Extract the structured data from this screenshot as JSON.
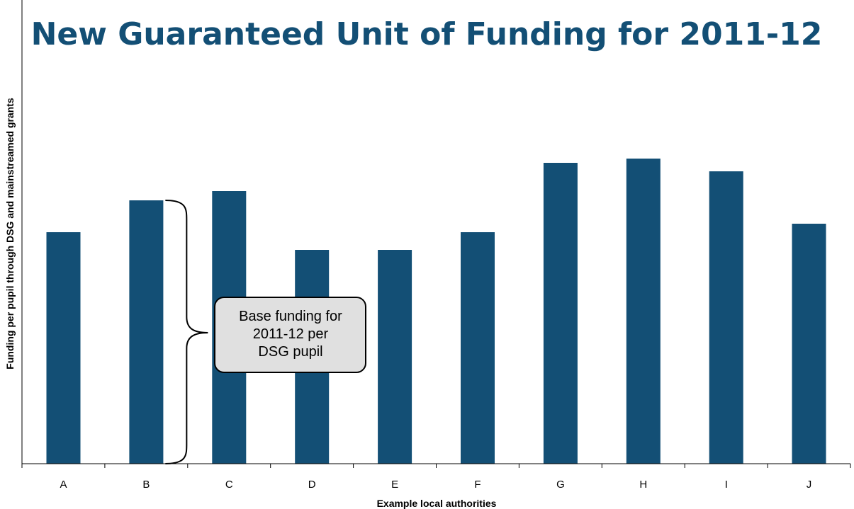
{
  "chart_data": {
    "type": "bar",
    "title": "New Guaranteed Unit of Funding for 2011-12",
    "xlabel": "Example local authorities",
    "ylabel": "Funding per pupil through DSG and mainstreamed grants",
    "categories": [
      "A",
      "B",
      "C",
      "D",
      "E",
      "F",
      "G",
      "H",
      "I",
      "J"
    ],
    "values": [
      327,
      372,
      385,
      302,
      302,
      327,
      425,
      431,
      413,
      339
    ],
    "ylim": [
      0,
      655
    ],
    "y_tick_labels": "none",
    "grid": false,
    "bar_color": "#134F75",
    "title_color": "#134F75",
    "annotation": {
      "target_category": "B",
      "lines": [
        "Base funding for",
        "2011-12 per",
        "DSG pupil"
      ],
      "box_fill": "#E0E0E0",
      "shape": "curly-brace"
    }
  }
}
